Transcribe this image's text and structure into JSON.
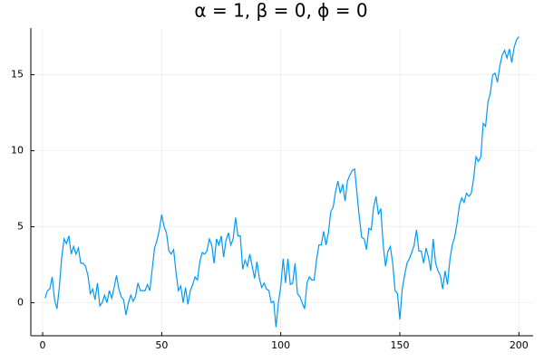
{
  "chart_data": {
    "type": "line",
    "title": "α = 1, β = 0, ϕ = 0",
    "x": [
      1,
      2,
      3,
      4,
      5,
      6,
      7,
      8,
      9,
      10,
      11,
      12,
      13,
      14,
      15,
      16,
      17,
      18,
      19,
      20,
      21,
      22,
      23,
      24,
      25,
      26,
      27,
      28,
      29,
      30,
      31,
      32,
      33,
      34,
      35,
      36,
      37,
      38,
      39,
      40,
      41,
      42,
      43,
      44,
      45,
      46,
      47,
      48,
      49,
      50,
      51,
      52,
      53,
      54,
      55,
      56,
      57,
      58,
      59,
      60,
      61,
      62,
      63,
      64,
      65,
      66,
      67,
      68,
      69,
      70,
      71,
      72,
      73,
      74,
      75,
      76,
      77,
      78,
      79,
      80,
      81,
      82,
      83,
      84,
      85,
      86,
      87,
      88,
      89,
      90,
      91,
      92,
      93,
      94,
      95,
      96,
      97,
      98,
      99,
      100,
      101,
      102,
      103,
      104,
      105,
      106,
      107,
      108,
      109,
      110,
      111,
      112,
      113,
      114,
      115,
      116,
      117,
      118,
      119,
      120,
      121,
      122,
      123,
      124,
      125,
      126,
      127,
      128,
      129,
      130,
      131,
      132,
      133,
      134,
      135,
      136,
      137,
      138,
      139,
      140,
      141,
      142,
      143,
      144,
      145,
      146,
      147,
      148,
      149,
      150,
      151,
      152,
      153,
      154,
      155,
      156,
      157,
      158,
      159,
      160,
      161,
      162,
      163,
      164,
      165,
      166,
      167,
      168,
      169,
      170,
      171,
      172,
      173,
      174,
      175,
      176,
      177,
      178,
      179,
      180,
      181,
      182,
      183,
      184,
      185,
      186,
      187,
      188,
      189,
      190,
      191,
      192,
      193,
      194,
      195,
      196,
      197,
      198,
      199,
      200
    ],
    "values": [
      0.3,
      0.8,
      0.9,
      1.7,
      0.2,
      -0.4,
      1.0,
      3.0,
      4.2,
      3.9,
      4.4,
      3.2,
      3.7,
      3.2,
      3.6,
      2.6,
      2.6,
      2.4,
      1.8,
      0.6,
      0.9,
      0.2,
      1.3,
      -0.2,
      0.0,
      0.5,
      0.0,
      0.8,
      0.3,
      1.0,
      1.8,
      0.9,
      0.4,
      0.2,
      -0.8,
      0.0,
      0.5,
      0.1,
      0.4,
      1.3,
      0.8,
      0.8,
      0.8,
      1.2,
      0.8,
      2.2,
      3.6,
      4.1,
      4.8,
      5.8,
      5.0,
      4.6,
      3.4,
      3.2,
      3.5,
      2.0,
      0.8,
      1.1,
      0.0,
      1.0,
      -0.1,
      0.8,
      1.2,
      1.7,
      1.5,
      2.7,
      3.3,
      3.2,
      3.4,
      4.2,
      3.8,
      2.6,
      4.2,
      3.8,
      4.4,
      3.0,
      4.1,
      4.6,
      3.8,
      4.2,
      5.6,
      4.4,
      4.4,
      2.2,
      2.8,
      2.4,
      3.2,
      2.4,
      1.6,
      2.7,
      1.6,
      1.0,
      1.3,
      0.9,
      0.8,
      0.0,
      0.1,
      -1.6,
      0.0,
      1.1,
      2.9,
      1.3,
      2.9,
      1.2,
      1.3,
      2.6,
      0.6,
      0.4,
      0.0,
      -0.4,
      1.3,
      1.7,
      1.5,
      1.5,
      2.8,
      3.8,
      3.8,
      4.7,
      3.8,
      4.6,
      6.0,
      6.3,
      7.3,
      8.0,
      7.2,
      7.8,
      6.7,
      8.0,
      8.4,
      8.7,
      8.8,
      7.2,
      5.6,
      4.3,
      4.2,
      3.5,
      4.9,
      4.8,
      6.3,
      7.0,
      5.8,
      6.2,
      3.8,
      2.4,
      3.4,
      3.7,
      2.6,
      0.8,
      0.6,
      -1.1,
      0.9,
      1.8,
      2.6,
      2.9,
      3.3,
      3.8,
      4.8,
      3.4,
      3.4,
      2.6,
      3.6,
      3.0,
      2.1,
      4.2,
      2.6,
      2.1,
      1.8,
      0.9,
      2.1,
      1.2,
      2.8,
      3.8,
      4.3,
      5.2,
      6.4,
      6.9,
      6.6,
      7.2,
      7.0,
      7.2,
      8.2,
      9.6,
      9.3,
      9.6,
      11.8,
      11.6,
      13.2,
      13.8,
      15.0,
      15.1,
      14.5,
      15.6,
      16.3,
      16.6,
      16.1,
      16.7,
      15.8,
      16.8,
      17.3,
      17.5
    ],
    "color": "#009af9",
    "xlim": [
      -4.97,
      205.97
    ],
    "ylim": [
      -2.17,
      18.07
    ],
    "xticks": [
      0,
      50,
      100,
      150,
      200
    ],
    "yticks": [
      0,
      5,
      10,
      15
    ],
    "grid": true
  }
}
